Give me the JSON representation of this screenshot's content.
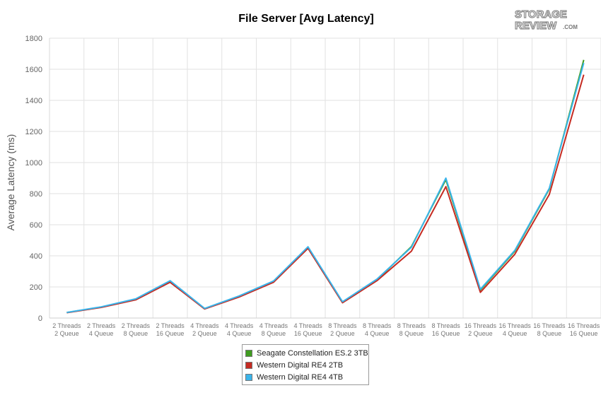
{
  "chart_data": {
    "type": "line",
    "title": "File Server [Avg Latency]",
    "xlabel": "",
    "ylabel": "Average Latency (ms)",
    "ylim": [
      0,
      1800
    ],
    "yticks": [
      0,
      200,
      400,
      600,
      800,
      1000,
      1200,
      1400,
      1600,
      1800
    ],
    "grid": true,
    "legend_position": "bottom",
    "categories": [
      [
        "2 Threads",
        "2 Queue"
      ],
      [
        "2 Threads",
        "4 Queue"
      ],
      [
        "2 Threads",
        "8 Queue"
      ],
      [
        "2 Threads",
        "16 Queue"
      ],
      [
        "4 Threads",
        "2 Queue"
      ],
      [
        "4 Threads",
        "4 Queue"
      ],
      [
        "4 Threads",
        "8 Queue"
      ],
      [
        "4 Threads",
        "16 Queue"
      ],
      [
        "8 Threads",
        "2 Queue"
      ],
      [
        "8 Threads",
        "4 Queue"
      ],
      [
        "8 Threads",
        "8 Queue"
      ],
      [
        "8 Threads",
        "16 Queue"
      ],
      [
        "16 Threads",
        "2 Queue"
      ],
      [
        "16 Threads",
        "4 Queue"
      ],
      [
        "16 Threads",
        "8 Queue"
      ],
      [
        "16 Threads",
        "16 Queue"
      ]
    ],
    "series": [
      {
        "name": "Seagate Constellation ES.2 3TB",
        "color": "#3f9c1f",
        "values": [
          35,
          70,
          120,
          235,
          60,
          140,
          235,
          450,
          100,
          245,
          460,
          890,
          180,
          430,
          830,
          1660
        ]
      },
      {
        "name": "Western Digital RE4 2TB",
        "color": "#c52b22",
        "values": [
          34,
          68,
          117,
          230,
          58,
          135,
          230,
          448,
          98,
          240,
          430,
          845,
          165,
          410,
          795,
          1565
        ]
      },
      {
        "name": "Western Digital RE4 4TB",
        "color": "#3ab4ea",
        "values": [
          36,
          72,
          123,
          240,
          62,
          142,
          238,
          458,
          105,
          250,
          455,
          900,
          185,
          435,
          835,
          1640
        ]
      }
    ]
  },
  "logo": {
    "line1": "STORAGE",
    "line2": "REVIEW",
    "suffix": ".COM"
  }
}
